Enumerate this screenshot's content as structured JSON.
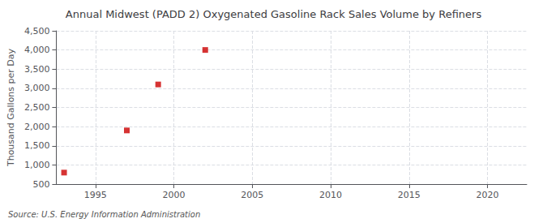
{
  "chart_data": {
    "type": "scatter",
    "title": "Annual Midwest (PADD 2) Oxygenated Gasoline Rack Sales Volume by Refiners",
    "ylabel": "Thousand Gallons per Day",
    "annotations": [
      "Source: U.S. Energy Information Administration"
    ],
    "x": [
      1993,
      1997,
      1999,
      2002
    ],
    "values": [
      800,
      1900,
      3100,
      4000
    ],
    "color": "#cc0000",
    "marker": "square",
    "xlim": [
      1992.5,
      2022.5
    ],
    "xticks": [
      1995,
      2000,
      2005,
      2010,
      2015,
      2020
    ],
    "ylim": [
      500,
      4500
    ],
    "yticks": [
      500,
      {
        "value": 1000,
        "label": "1,000"
      },
      {
        "value": 1500,
        "label": "1,500"
      },
      {
        "value": 2000,
        "label": "2,000"
      },
      {
        "value": 2500,
        "label": "2,500"
      },
      {
        "value": 3000,
        "label": "3,000"
      },
      {
        "value": 3500,
        "label": "3,500"
      },
      {
        "value": 4000,
        "label": "4,000"
      },
      {
        "value": 4500,
        "label": "4,500"
      }
    ],
    "grid": true
  }
}
